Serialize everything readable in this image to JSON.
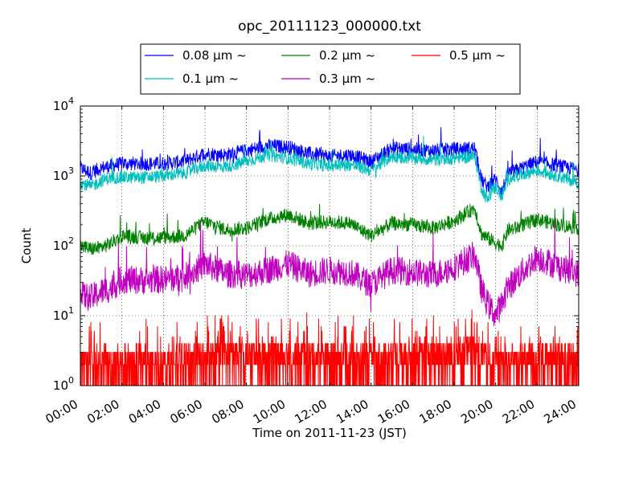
{
  "chart_data": {
    "type": "line",
    "title": "opc_20111123_000000.txt",
    "xlabel": "Time on 2011-11-23 (JST)",
    "ylabel": "Count",
    "yscale": "log",
    "ylim": [
      1,
      10000
    ],
    "xlim_hours": [
      0,
      24
    ],
    "x_tick_labels": [
      "00:00",
      "02:00",
      "04:00",
      "06:00",
      "08:00",
      "10:00",
      "12:00",
      "14:00",
      "16:00",
      "18:00",
      "20:00",
      "22:00",
      "24:00"
    ],
    "y_tick_labels": [
      {
        "base": "10",
        "exp": "0"
      },
      {
        "base": "10",
        "exp": "1"
      },
      {
        "base": "10",
        "exp": "2"
      },
      {
        "base": "10",
        "exp": "3"
      },
      {
        "base": "10",
        "exp": "4"
      }
    ],
    "grid": true,
    "legend_position": "top-center",
    "series": [
      {
        "name": "0.08 μm ~",
        "color": "#0000ff",
        "noise": 0.1,
        "x": [
          0,
          0.5,
          1,
          1.5,
          2,
          3,
          4,
          5,
          6,
          7,
          8,
          9,
          10,
          11,
          12,
          13,
          14,
          15,
          16,
          17,
          18,
          19,
          19.3,
          19.6,
          20,
          20.3,
          20.6,
          21,
          22,
          23,
          24
        ],
        "y": [
          1300,
          1100,
          1300,
          1400,
          1500,
          1500,
          1500,
          1600,
          2100,
          2000,
          2300,
          2700,
          2600,
          2100,
          1900,
          2000,
          1600,
          2500,
          2400,
          2300,
          2400,
          2500,
          900,
          700,
          900,
          600,
          1100,
          1200,
          1600,
          1400,
          1200
        ]
      },
      {
        "name": "0.1 μm ~",
        "color": "#00bfbf",
        "noise": 0.09,
        "x": [
          0,
          0.5,
          1,
          1.5,
          2,
          3,
          4,
          5,
          6,
          7,
          8,
          9,
          10,
          11,
          12,
          13,
          14,
          15,
          16,
          17,
          18,
          19,
          19.3,
          19.6,
          20,
          20.3,
          20.6,
          21,
          22,
          23,
          24
        ],
        "y": [
          800,
          700,
          850,
          950,
          950,
          950,
          1000,
          1100,
          1400,
          1350,
          1600,
          2000,
          1800,
          1500,
          1400,
          1450,
          1200,
          1900,
          1800,
          1700,
          1800,
          1900,
          700,
          450,
          700,
          500,
          900,
          1000,
          1200,
          1000,
          800
        ]
      },
      {
        "name": "0.2 μm ~",
        "color": "#008000",
        "noise": 0.1,
        "x": [
          0,
          0.5,
          1,
          1.5,
          2,
          3,
          4,
          5,
          6,
          7,
          8,
          9,
          10,
          11,
          12,
          13,
          14,
          15,
          16,
          17,
          18,
          19,
          19.3,
          19.6,
          20,
          20.3,
          20.6,
          21,
          22,
          23,
          24
        ],
        "y": [
          100,
          90,
          95,
          110,
          140,
          130,
          130,
          140,
          220,
          170,
          180,
          240,
          280,
          210,
          220,
          210,
          140,
          210,
          200,
          180,
          230,
          350,
          150,
          130,
          110,
          100,
          170,
          180,
          240,
          200,
          180
        ]
      },
      {
        "name": "0.3 μm ~",
        "color": "#bf00bf",
        "noise": 0.2,
        "x": [
          0,
          0.5,
          1,
          1.5,
          2,
          3,
          4,
          5,
          6,
          7,
          8,
          9,
          10,
          11,
          12,
          13,
          14,
          15,
          16,
          17,
          18,
          19,
          19.3,
          19.6,
          20,
          20.3,
          20.6,
          21,
          22,
          23,
          24
        ],
        "y": [
          20,
          18,
          22,
          25,
          33,
          32,
          33,
          35,
          55,
          40,
          38,
          45,
          55,
          40,
          45,
          42,
          28,
          45,
          42,
          38,
          50,
          75,
          25,
          15,
          10,
          15,
          25,
          35,
          70,
          50,
          40
        ]
      },
      {
        "name": "0.5 μm ~",
        "color": "#ff0000",
        "noise": 0,
        "x": [
          0,
          2,
          4,
          6,
          8,
          10,
          12,
          14,
          16,
          18,
          19,
          20,
          22,
          24
        ],
        "y": [
          2.2,
          2.3,
          2.2,
          2.6,
          2.8,
          3.0,
          2.6,
          2.4,
          2.9,
          3.0,
          3.5,
          2.0,
          2.6,
          2.3
        ]
      }
    ]
  }
}
